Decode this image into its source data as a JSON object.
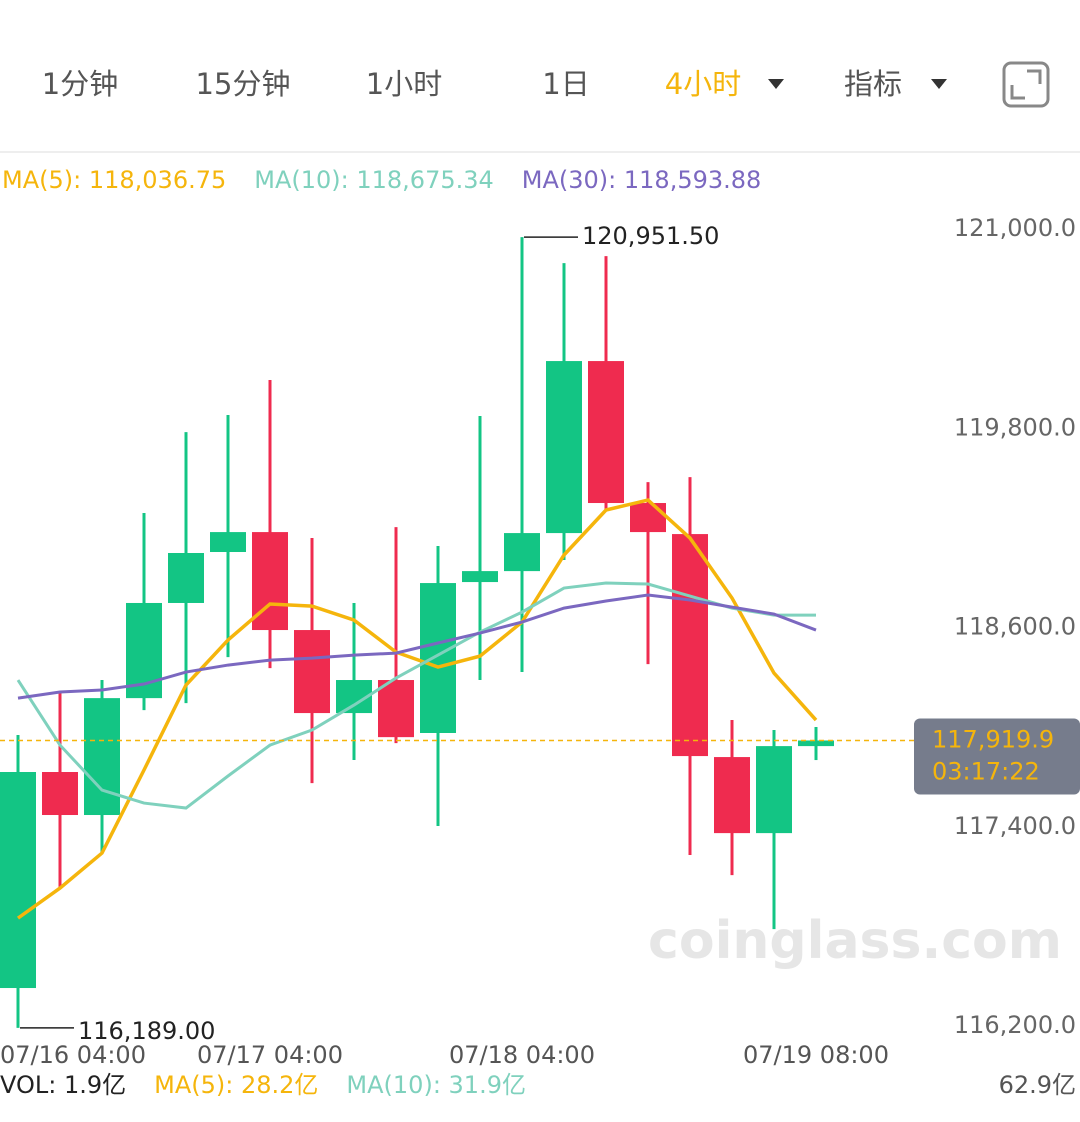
{
  "tabs": [
    "1分钟",
    "15分钟",
    "1小时",
    "1日",
    "4小时",
    "指标"
  ],
  "active_tab": 4,
  "watermark": "coinglass.com",
  "chart_data": {
    "type": "candlestick",
    "categories": [
      "07/16 04:00",
      null,
      null,
      null,
      null,
      null,
      "07/17 04:00",
      null,
      null,
      null,
      null,
      null,
      "07/18 04:00",
      null,
      null,
      null,
      null,
      null,
      null,
      "07/19 08:00"
    ],
    "open": [
      116429,
      117730,
      117471,
      118175,
      118748,
      119055,
      119175,
      118585,
      118085,
      118284,
      117965,
      118874,
      118940,
      119169,
      120205,
      119350,
      119163,
      117820,
      117362,
      117886
    ],
    "high": [
      117953,
      118206,
      118284,
      119290,
      119777,
      119880,
      120091,
      119139,
      118748,
      119205,
      119091,
      119874,
      120951.5,
      120795,
      120837,
      119476,
      119506,
      118043,
      117983,
      118001
    ],
    "low": [
      116189,
      117031,
      117248,
      118103,
      118145,
      118422,
      118356,
      117663,
      117802,
      117904,
      117405,
      118284,
      118332,
      119007,
      119302,
      118380,
      117230,
      117109,
      116784,
      117802
    ],
    "close": [
      117730,
      117471,
      118175,
      118748,
      119049,
      119175,
      118585,
      118085,
      118284,
      117940,
      118868,
      118940,
      119169,
      120205,
      119350,
      119175,
      117826,
      117362,
      117886,
      117919.9
    ],
    "up_color": "#13c584",
    "down_color": "#ef2b4f",
    "series": [
      {
        "name": "MA(5)",
        "legend_label": "MA(5): 118,036.75",
        "color": "#f5b50c",
        "values": [
          116850,
          117031,
          117242,
          117742,
          118254,
          118525,
          118742,
          118729,
          118645,
          118452,
          118362,
          118428,
          118633,
          119037,
          119308,
          119368,
          119139,
          118778,
          118326,
          118043
        ]
      },
      {
        "name": "MA(10)",
        "legend_label": "MA(10): 118,675.34",
        "color": "#7fd1bd",
        "values": [
          118284,
          117892,
          117621,
          117543,
          117513,
          117706,
          117892,
          117983,
          118133,
          118296,
          118434,
          118573,
          118693,
          118838,
          118868,
          118862,
          118790,
          118717,
          118675,
          118675
        ]
      },
      {
        "name": "MA(30)",
        "legend_label": "MA(30): 118,593.88",
        "color": "#7b68c0",
        "values": [
          118175,
          118212,
          118224,
          118260,
          118332,
          118374,
          118404,
          118416,
          118434,
          118446,
          118507,
          118567,
          118633,
          118717,
          118760,
          118796,
          118766,
          118723,
          118681,
          118585
        ]
      }
    ],
    "ylim": [
      116116,
      121175
    ],
    "yticks": [
      {
        "value": 121000,
        "label": "121,000.0"
      },
      {
        "value": 119800,
        "label": "119,800.0"
      },
      {
        "value": 118600,
        "label": "118,600.0"
      },
      {
        "value": 117400,
        "label": "117,400.0"
      },
      {
        "value": 116200,
        "label": "116,200.0"
      }
    ],
    "annotations": [
      {
        "candle": 12,
        "value": 120951.5,
        "label": "120,951.50"
      },
      {
        "candle": 0,
        "value": 116189,
        "label": "116,189.00"
      }
    ],
    "current_price": {
      "value": 117919.9,
      "label": "117,919.9",
      "countdown": "03:17:22"
    },
    "volume_legend": [
      "VOL: 1.9亿",
      "MA(5): 28.2亿",
      "MA(10): 31.9亿"
    ],
    "volume_max_label": "62.9亿"
  }
}
